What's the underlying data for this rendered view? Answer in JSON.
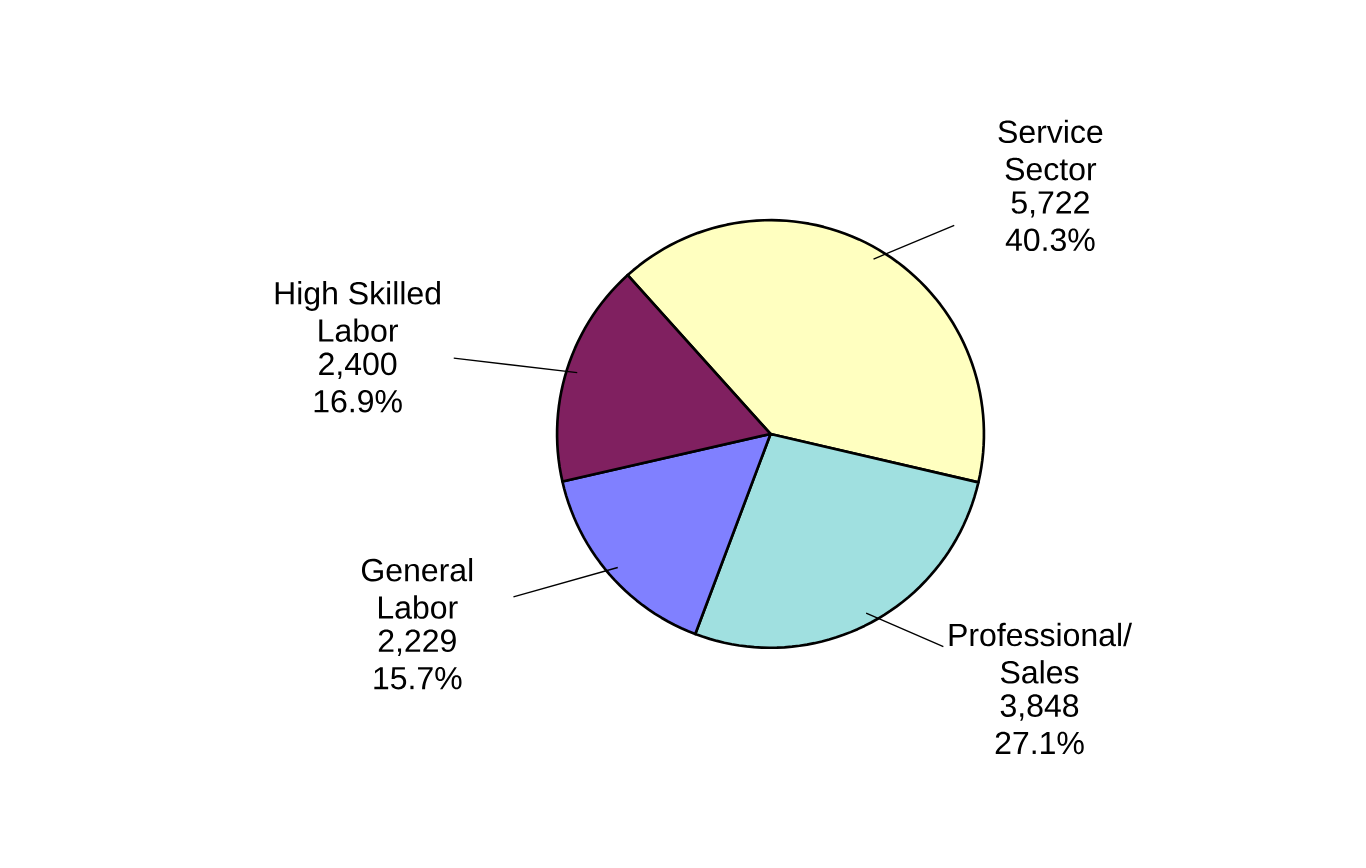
{
  "chart_data": {
    "type": "pie",
    "categories": [
      "Service Sector",
      "Professional/ Sales",
      "General Labor",
      "High Skilled Labor"
    ],
    "values": [
      5722,
      3848,
      2229,
      2400
    ],
    "value_labels": [
      "5,722 40.3%",
      "3,848 27.1%",
      "2,229 15.7%",
      "2,400 16.9%"
    ],
    "colors": [
      "#ffffc0",
      "#a0e0e0",
      "#8080ff",
      "#802060"
    ]
  }
}
